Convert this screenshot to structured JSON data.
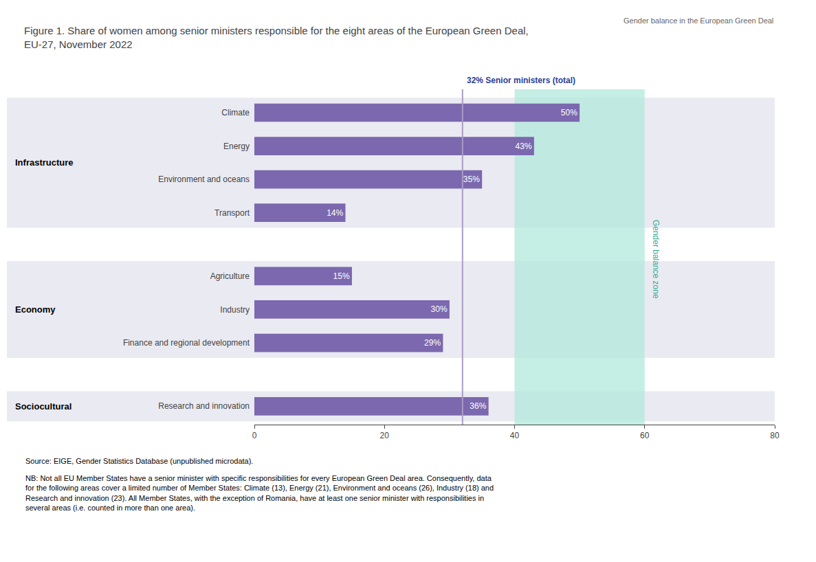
{
  "chart_data": {
    "type": "bar",
    "orientation": "horizontal",
    "title": "Figure 1. Share of women among senior ministers responsible for the eight areas of the European Green Deal,\nEU-27, November 2022",
    "header": "Gender balance in the European Green Deal",
    "source": "Source: EIGE, Gender Statistics Database (unpublished microdata).",
    "note": "NB: Not all EU Member States have a senior minister with specific responsibilities for every European Green Deal area. Consequently, data\nfor the following areas cover a limited number of Member States: Climate (13), Energy (21), Environment and oceans (26), Industry (18) and\nResearch and innovation (23). All Member States, with the exception of Romania, have at least one senior minister with responsibilities in\nseveral areas (i.e. counted in more than one area).",
    "categories": [
      "Climate",
      "Energy",
      "Environment and oceans",
      "Transport",
      "Agriculture",
      "Industry",
      "Finance and regional development",
      "Research and innovation"
    ],
    "values": [
      50,
      43,
      35,
      14,
      15,
      30,
      29,
      36
    ],
    "value_labels": [
      "50%",
      "43%",
      "35%",
      "14%",
      "15%",
      "30%",
      "29%",
      "36%"
    ],
    "data_labels": true,
    "color": "#7B68AE",
    "xlim": [
      0,
      80
    ],
    "xticks": [
      0,
      20,
      40,
      60,
      80
    ],
    "grid": false,
    "groups": [
      {
        "label": "Infrastructure",
        "categories": [
          "Climate",
          "Energy",
          "Environment and oceans",
          "Transport"
        ],
        "color": "#EAEAF2"
      },
      {
        "label": "Economy",
        "categories": [
          "Agriculture",
          "Industry",
          "Finance and regional development"
        ],
        "color": "#EAEAF2"
      },
      {
        "label": "Sociocultural",
        "categories": [
          "Research and innovation"
        ],
        "color": "#EAEAF2"
      }
    ],
    "reference_line": {
      "value": 32,
      "label": "32% Senior ministers (total)",
      "color": "#A99CC5",
      "label_color": "#2B4099"
    },
    "bands": [
      {
        "from": 40,
        "to": 60,
        "label": "Gender balance zone",
        "color": "#B2E8DC",
        "label_color": "#3BAA96"
      }
    ]
  }
}
